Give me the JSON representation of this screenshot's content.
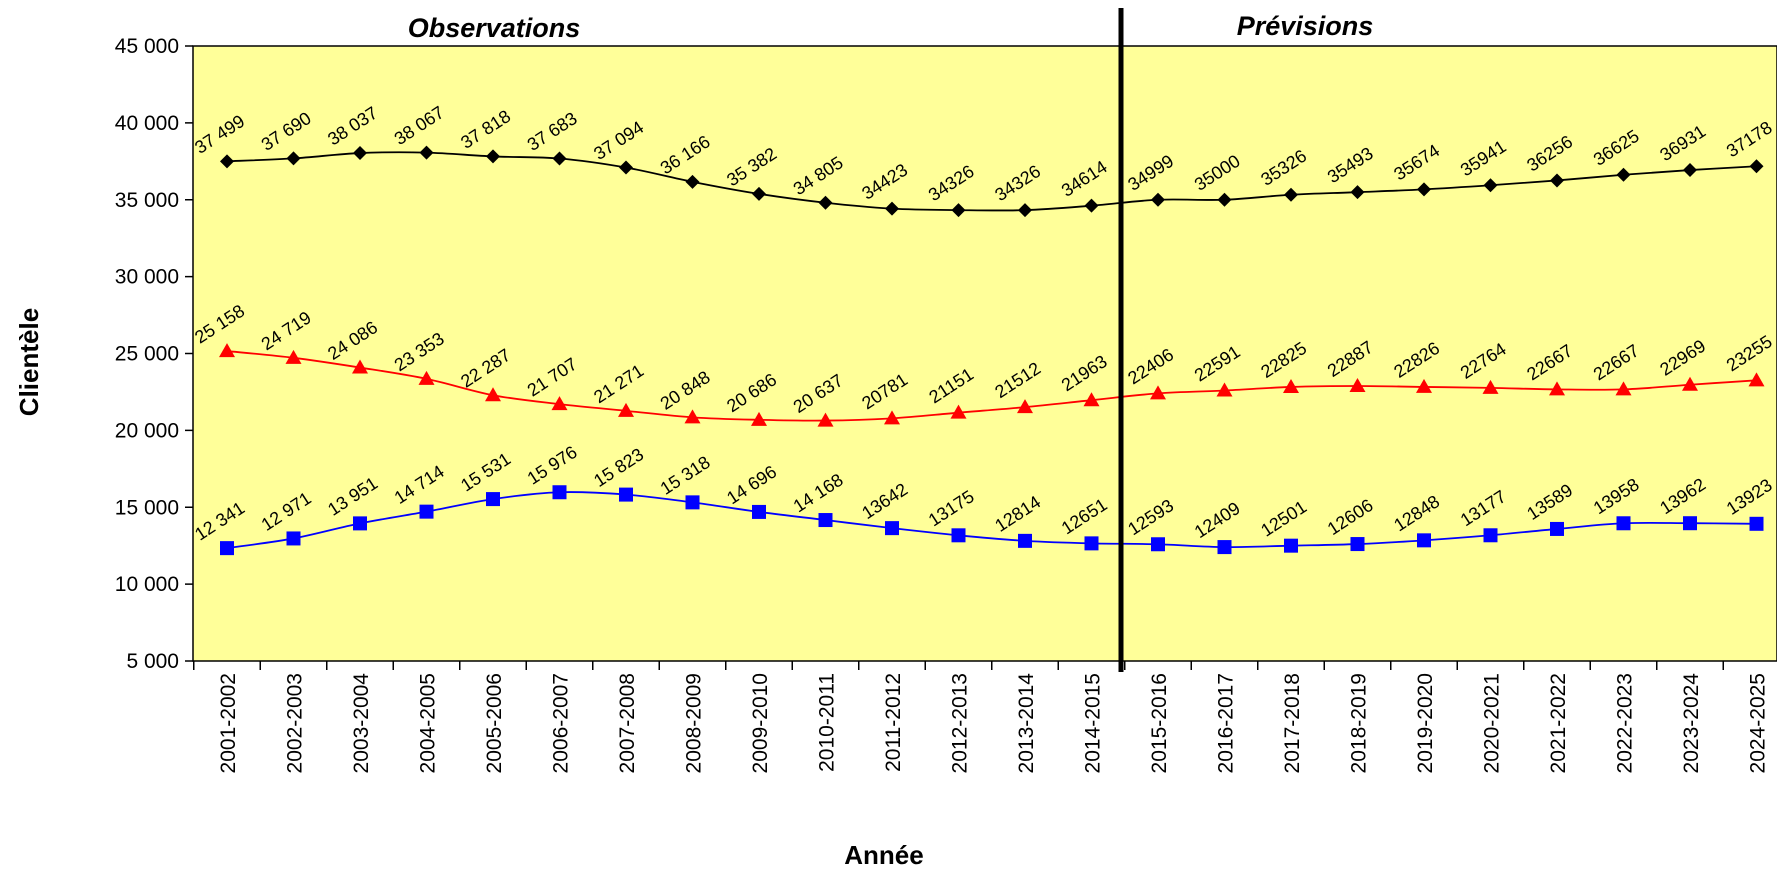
{
  "chart_data": {
    "type": "line",
    "xlabel": "Année",
    "ylabel": "Clientèle",
    "ylim": [
      5000,
      45000
    ],
    "yticks": [
      "5 000",
      "10 000",
      "15 000",
      "20 000",
      "25 000",
      "30 000",
      "35 000",
      "40 000",
      "45 000"
    ],
    "plot_background": "#ffff99",
    "grid": false,
    "legend": "none",
    "sections": [
      {
        "label": "Observations",
        "from_index": 0,
        "to_index": 13
      },
      {
        "label": "Prévisions",
        "from_index": 14,
        "to_index": 23
      }
    ],
    "divider_after_category": "2014-2015",
    "categories": [
      "2001-2002",
      "2002-2003",
      "2003-2004",
      "2004-2005",
      "2005-2006",
      "2006-2007",
      "2007-2008",
      "2008-2009",
      "2009-2010",
      "2010-2011",
      "2011-2012",
      "2012-2013",
      "2013-2014",
      "2014-2015",
      "2015-2016",
      "2016-2017",
      "2017-2018",
      "2018-2019",
      "2019-2020",
      "2020-2021",
      "2021-2022",
      "2022-2023",
      "2023-2024",
      "2024-2025"
    ],
    "series": [
      {
        "color": "#000000",
        "marker": "diamond",
        "values": [
          37499,
          37690,
          38037,
          38067,
          37818,
          37683,
          37094,
          36166,
          35382,
          34805,
          34423,
          34326,
          34326,
          34614,
          34999,
          35000,
          35326,
          35493,
          35674,
          35941,
          36256,
          36625,
          36931,
          37178
        ],
        "labels": [
          "37 499",
          "37 690",
          "38 037",
          "38 067",
          "37 818",
          "37 683",
          "37 094",
          "36 166",
          "35 382",
          "34 805",
          "34423",
          "34326",
          "34326",
          "34614",
          "34999",
          "35000",
          "35326",
          "35493",
          "35674",
          "35941",
          "36256",
          "36625",
          "36931",
          "37178"
        ]
      },
      {
        "color": "#ff0000",
        "marker": "triangle",
        "values": [
          25158,
          24719,
          24086,
          23353,
          22287,
          21707,
          21271,
          20848,
          20686,
          20637,
          20781,
          21151,
          21512,
          21963,
          22406,
          22591,
          22825,
          22887,
          22826,
          22764,
          22667,
          22667,
          22969,
          23255
        ],
        "labels": [
          "25 158",
          "24 719",
          "24 086",
          "23 353",
          "22 287",
          "21 707",
          "21 271",
          "20 848",
          "20 686",
          "20 637",
          "20781",
          "21151",
          "21512",
          "21963",
          "22406",
          "22591",
          "22825",
          "22887",
          "22826",
          "22764",
          "22667",
          "22667",
          "22969",
          "23255"
        ]
      },
      {
        "color": "#0000ff",
        "marker": "square",
        "values": [
          12341,
          12971,
          13951,
          14714,
          15531,
          15976,
          15823,
          15318,
          14696,
          14168,
          13642,
          13175,
          12814,
          12651,
          12593,
          12409,
          12501,
          12606,
          12848,
          13177,
          13589,
          13958,
          13962,
          13923
        ],
        "labels": [
          "12 341",
          "12 971",
          "13 951",
          "14 714",
          "15 531",
          "15 976",
          "15 823",
          "15 318",
          "14 696",
          "14 168",
          "13642",
          "13175",
          "12814",
          "12651",
          "12593",
          "12409",
          "12501",
          "12606",
          "12848",
          "13177",
          "13589",
          "13958",
          "13962",
          "13923"
        ]
      }
    ]
  }
}
